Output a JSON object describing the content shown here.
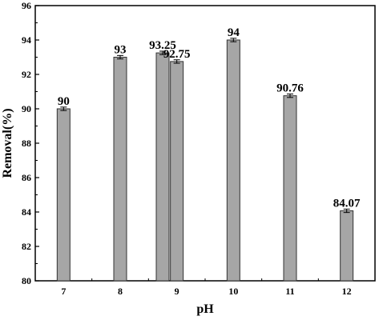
{
  "chart_data": {
    "type": "bar",
    "title": "",
    "xlabel": "pH",
    "ylabel": "Removal(%)",
    "ylim": [
      80,
      96
    ],
    "yticks": [
      80,
      82,
      84,
      86,
      88,
      90,
      92,
      94,
      96
    ],
    "x_ticks": [
      {
        "label": "7",
        "value": 7
      },
      {
        "label": "8",
        "value": 8
      },
      {
        "label": "9",
        "value": 9
      },
      {
        "label": "10",
        "value": 10
      },
      {
        "label": "11",
        "value": 11
      },
      {
        "label": "12",
        "value": 12
      }
    ],
    "xlim": [
      6.5,
      12.5
    ],
    "bars": [
      {
        "x": 7,
        "value": 90,
        "label": "90",
        "error": 0.1
      },
      {
        "x": 8,
        "value": 93,
        "label": "93",
        "error": 0.1
      },
      {
        "x": 8.75,
        "value": 93.25,
        "label": "93.25",
        "error": 0.1
      },
      {
        "x": 9,
        "value": 92.75,
        "label": "92.75",
        "error": 0.1
      },
      {
        "x": 10,
        "value": 94,
        "label": "94",
        "error": 0.1
      },
      {
        "x": 11,
        "value": 90.76,
        "label": "90.76",
        "error": 0.1
      },
      {
        "x": 12,
        "value": 84.07,
        "label": "84.07",
        "error": 0.1
      }
    ],
    "bar_color": "#a6a6a6",
    "bar_edge_color": "#333333",
    "grid": false,
    "legend": "none"
  }
}
